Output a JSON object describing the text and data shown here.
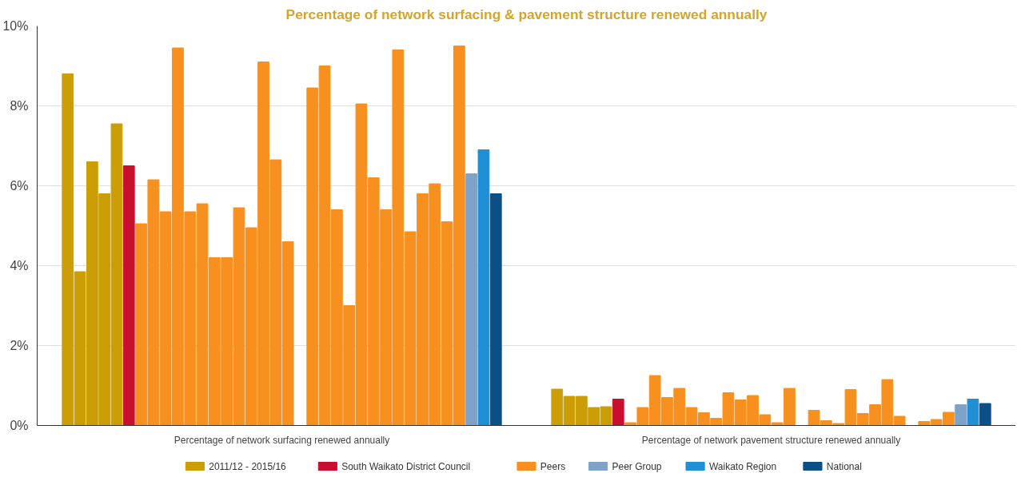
{
  "chart_data": {
    "type": "bar",
    "title": "Percentage of network surfacing & pavement structure renewed annually",
    "categories": [
      "Percentage of network surfacing renewed annually",
      "Percentage of network pavement structure renewed annually"
    ],
    "ylim": [
      0,
      10
    ],
    "yticks": [
      {
        "value": 0,
        "label": "0%"
      },
      {
        "value": 2,
        "label": "2%"
      },
      {
        "value": 4,
        "label": "4%"
      },
      {
        "value": 6,
        "label": "6%"
      },
      {
        "value": 8,
        "label": "8%"
      },
      {
        "value": 10,
        "label": "10%"
      }
    ],
    "grid": "y",
    "legend": "bottom",
    "series": [
      {
        "name": "2011/12 - 2015/16",
        "color": "#cc9e06",
        "values": [
          8.8,
          0.91
        ]
      },
      {
        "color": "#cc9e06",
        "values": [
          3.85,
          0.73
        ]
      },
      {
        "color": "#cc9e06",
        "values": [
          6.6,
          0.73
        ]
      },
      {
        "color": "#cc9e06",
        "values": [
          5.8,
          0.45
        ]
      },
      {
        "color": "#cc9e06",
        "values": [
          7.55,
          0.47
        ]
      },
      {
        "name": "South Waikato District Council",
        "color": "#c8102e",
        "values": [
          6.5,
          0.66
        ]
      },
      {
        "name": "Peers",
        "color": "#f7901e",
        "values": [
          5.05,
          0.07
        ]
      },
      {
        "color": "#f7901e",
        "values": [
          6.15,
          0.45
        ]
      },
      {
        "color": "#f7901e",
        "values": [
          5.35,
          1.25
        ]
      },
      {
        "color": "#f7901e",
        "values": [
          9.45,
          0.7
        ]
      },
      {
        "color": "#f7901e",
        "values": [
          5.35,
          0.93
        ]
      },
      {
        "color": "#f7901e",
        "values": [
          5.55,
          0.45
        ]
      },
      {
        "color": "#f7901e",
        "values": [
          4.2,
          0.32
        ]
      },
      {
        "color": "#f7901e",
        "values": [
          4.2,
          0.18
        ]
      },
      {
        "color": "#f7901e",
        "values": [
          5.45,
          0.82
        ]
      },
      {
        "color": "#f7901e",
        "values": [
          4.95,
          0.64
        ]
      },
      {
        "color": "#f7901e",
        "values": [
          9.1,
          0.75
        ]
      },
      {
        "color": "#f7901e",
        "values": [
          6.65,
          0.27
        ]
      },
      {
        "color": "#f7901e",
        "values": [
          4.6,
          0.07
        ]
      },
      {
        "color": "#f7901e",
        "values": [
          null,
          0.93
        ]
      },
      {
        "color": "#f7901e",
        "values": [
          8.45,
          null
        ]
      },
      {
        "color": "#f7901e",
        "values": [
          9.0,
          0.38
        ]
      },
      {
        "color": "#f7901e",
        "values": [
          5.4,
          0.12
        ]
      },
      {
        "color": "#f7901e",
        "values": [
          3.0,
          0.05
        ]
      },
      {
        "color": "#f7901e",
        "values": [
          8.05,
          0.9
        ]
      },
      {
        "color": "#f7901e",
        "values": [
          6.2,
          0.3
        ]
      },
      {
        "color": "#f7901e",
        "values": [
          5.4,
          0.52
        ]
      },
      {
        "color": "#f7901e",
        "values": [
          9.4,
          1.15
        ]
      },
      {
        "color": "#f7901e",
        "values": [
          4.85,
          0.23
        ]
      },
      {
        "color": "#f7901e",
        "values": [
          5.8,
          null
        ]
      },
      {
        "color": "#f7901e",
        "values": [
          6.05,
          0.1
        ]
      },
      {
        "color": "#f7901e",
        "values": [
          5.1,
          0.15
        ]
      },
      {
        "color": "#f7901e",
        "values": [
          9.5,
          0.33
        ]
      },
      {
        "name": "Peer Group",
        "color": "#7fa3c8",
        "values": [
          6.3,
          0.52
        ]
      },
      {
        "name": "Waikato Region",
        "color": "#1f8fd6",
        "values": [
          6.9,
          0.66
        ]
      },
      {
        "name": "National",
        "color": "#0a4f86",
        "values": [
          5.8,
          0.55
        ]
      }
    ]
  }
}
